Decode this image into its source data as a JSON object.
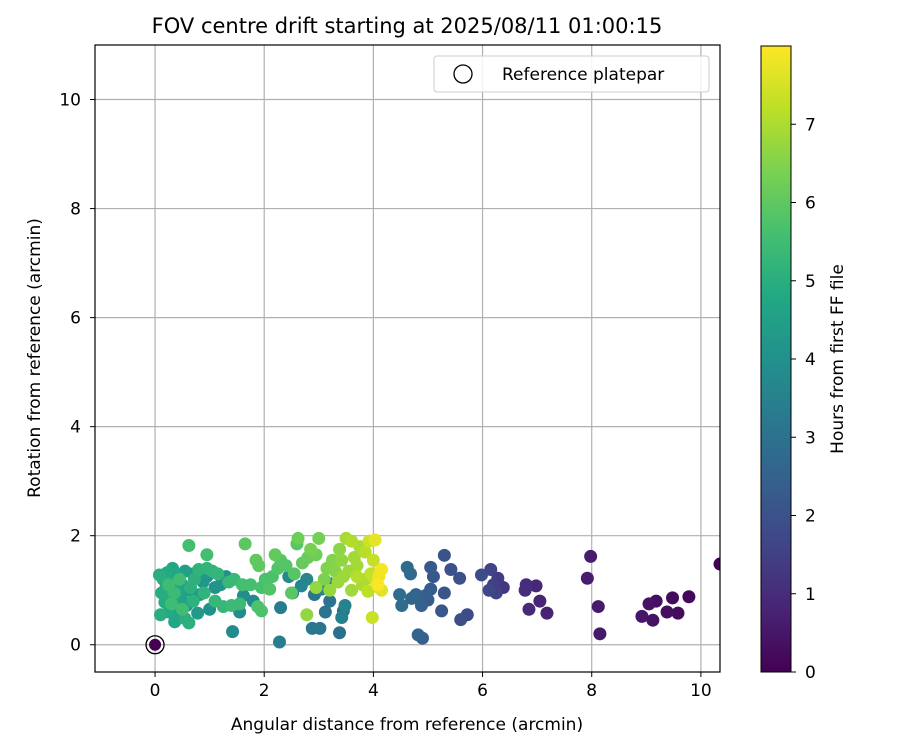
{
  "chart_data": {
    "type": "scatter",
    "title": "FOV centre drift starting at 2025/08/11 01:00:15",
    "xlabel": "Angular distance from reference (arcmin)",
    "ylabel": "Rotation from reference (arcmin)",
    "xlim": [
      -1.1,
      10.35
    ],
    "ylim": [
      -0.5,
      11.0
    ],
    "xticks": [
      0,
      2,
      4,
      6,
      8,
      10
    ],
    "yticks": [
      0,
      2,
      4,
      6,
      8,
      10
    ],
    "grid": true,
    "colormap": "viridis",
    "colorbar": {
      "label": "Hours from first FF file",
      "range": [
        0,
        8.0
      ],
      "ticks": [
        0,
        1,
        2,
        3,
        4,
        5,
        6,
        7
      ]
    },
    "legend": {
      "position": "top-right",
      "entries": [
        {
          "label": "Reference platepar",
          "marker": "open-circle"
        }
      ]
    },
    "reference_point": {
      "x": 0,
      "y": 0,
      "c": 0
    },
    "points": [
      [
        10.35,
        1.48,
        0.05
      ],
      [
        9.78,
        0.88,
        0.15
      ],
      [
        9.58,
        0.58,
        0.22
      ],
      [
        9.48,
        0.86,
        0.25
      ],
      [
        9.38,
        0.6,
        0.3
      ],
      [
        9.18,
        0.8,
        0.35
      ],
      [
        9.12,
        0.45,
        0.38
      ],
      [
        9.05,
        0.75,
        0.4
      ],
      [
        8.92,
        0.52,
        0.45
      ],
      [
        8.15,
        0.2,
        0.55
      ],
      [
        8.12,
        0.7,
        0.58
      ],
      [
        7.98,
        1.62,
        0.62
      ],
      [
        7.92,
        1.22,
        0.65
      ],
      [
        7.18,
        0.58,
        0.8
      ],
      [
        7.05,
        0.8,
        0.85
      ],
      [
        6.98,
        1.08,
        0.9
      ],
      [
        6.85,
        0.65,
        0.95
      ],
      [
        6.8,
        1.1,
        1.0
      ],
      [
        6.78,
        1.0,
        1.05
      ],
      [
        6.38,
        1.05,
        1.3
      ],
      [
        6.28,
        1.22,
        1.4
      ],
      [
        6.2,
        1.1,
        1.5
      ],
      [
        6.25,
        0.95,
        1.55
      ],
      [
        6.15,
        1.38,
        1.6
      ],
      [
        6.12,
        1.0,
        1.7
      ],
      [
        5.98,
        1.28,
        1.8
      ],
      [
        5.72,
        0.55,
        1.85
      ],
      [
        5.6,
        0.46,
        1.9
      ],
      [
        5.58,
        1.22,
        1.95
      ],
      [
        5.42,
        1.38,
        2.0
      ],
      [
        5.3,
        1.64,
        2.05
      ],
      [
        5.3,
        0.95,
        2.1
      ],
      [
        5.25,
        0.62,
        2.15
      ],
      [
        5.1,
        1.25,
        2.2
      ],
      [
        5.05,
        1.42,
        2.25
      ],
      [
        5.0,
        0.82,
        2.3
      ],
      [
        5.05,
        1.02,
        2.35
      ],
      [
        4.95,
        0.9,
        2.4
      ],
      [
        4.88,
        0.72,
        2.45
      ],
      [
        4.9,
        0.12,
        2.5
      ],
      [
        4.82,
        0.18,
        2.55
      ],
      [
        4.78,
        0.92,
        2.6
      ],
      [
        4.7,
        0.85,
        2.65
      ],
      [
        4.68,
        1.3,
        2.7
      ],
      [
        4.62,
        1.42,
        2.75
      ],
      [
        4.52,
        0.72,
        2.8
      ],
      [
        4.48,
        0.92,
        2.85
      ],
      [
        3.45,
        0.62,
        2.9
      ],
      [
        3.38,
        0.22,
        2.95
      ],
      [
        3.2,
        0.8,
        3.0
      ],
      [
        3.12,
        0.6,
        3.05
      ],
      [
        3.02,
        0.3,
        3.1
      ],
      [
        2.92,
        0.92,
        3.15
      ],
      [
        2.88,
        0.3,
        3.2
      ],
      [
        2.52,
        0.95,
        3.25
      ],
      [
        2.3,
        0.68,
        3.3
      ],
      [
        2.28,
        0.05,
        3.35
      ],
      [
        3.05,
        1.02,
        3.4
      ],
      [
        3.2,
        1.12,
        3.45
      ],
      [
        3.42,
        0.5,
        3.5
      ],
      [
        3.48,
        0.72,
        3.55
      ],
      [
        2.78,
        1.2,
        3.6
      ],
      [
        2.68,
        1.08,
        3.65
      ],
      [
        2.45,
        1.25,
        3.7
      ],
      [
        1.8,
        0.8,
        3.75
      ],
      [
        1.42,
        0.24,
        3.8
      ],
      [
        1.55,
        0.6,
        3.85
      ],
      [
        1.62,
        0.9,
        3.9
      ],
      [
        1.3,
        1.25,
        3.95
      ],
      [
        1.0,
        0.65,
        4.0
      ],
      [
        1.1,
        1.05,
        4.05
      ],
      [
        1.2,
        1.1,
        4.1
      ],
      [
        0.95,
        1.25,
        4.15
      ],
      [
        0.88,
        1.15,
        4.2
      ],
      [
        0.82,
        0.92,
        4.25
      ],
      [
        0.78,
        0.58,
        4.3
      ],
      [
        0.7,
        1.3,
        4.35
      ],
      [
        0.62,
        1.0,
        4.4
      ],
      [
        0.58,
        0.72,
        4.45
      ],
      [
        0.55,
        1.35,
        4.5
      ],
      [
        0.5,
        1.1,
        4.55
      ],
      [
        0.48,
        0.85,
        4.6
      ],
      [
        0.45,
        0.55,
        4.62
      ],
      [
        0.42,
        1.25,
        4.65
      ],
      [
        0.4,
        0.98,
        4.68
      ],
      [
        0.38,
        0.7,
        4.7
      ],
      [
        0.36,
        0.42,
        4.72
      ],
      [
        0.32,
        1.4,
        4.75
      ],
      [
        0.3,
        1.15,
        4.78
      ],
      [
        0.28,
        0.88,
        4.8
      ],
      [
        0.25,
        0.6,
        4.82
      ],
      [
        0.22,
        1.32,
        4.85
      ],
      [
        0.2,
        1.05,
        4.88
      ],
      [
        0.18,
        0.78,
        4.9
      ],
      [
        0.15,
        1.2,
        4.92
      ],
      [
        0.12,
        0.95,
        4.95
      ],
      [
        0.1,
        0.55,
        4.98
      ],
      [
        0.08,
        1.28,
        5.0
      ],
      [
        0.55,
        0.48,
        5.02
      ],
      [
        0.62,
        0.4,
        5.05
      ],
      [
        0.65,
        1.05,
        5.08
      ],
      [
        0.7,
        0.8,
        5.1
      ],
      [
        0.72,
        1.2,
        5.12
      ],
      [
        0.8,
        1.38,
        5.15
      ],
      [
        0.9,
        0.95,
        5.18
      ],
      [
        0.95,
        1.4,
        5.2
      ],
      [
        1.05,
        1.35,
        5.22
      ],
      [
        1.15,
        1.3,
        5.25
      ],
      [
        1.1,
        0.8,
        5.28
      ],
      [
        1.25,
        0.7,
        5.3
      ],
      [
        1.35,
        1.15,
        5.32
      ],
      [
        1.45,
        1.2,
        5.35
      ],
      [
        1.4,
        0.72,
        5.38
      ],
      [
        1.55,
        0.75,
        5.4
      ],
      [
        0.35,
        0.95,
        5.42
      ],
      [
        0.3,
        0.75,
        5.45
      ],
      [
        0.25,
        1.1,
        5.48
      ],
      [
        0.45,
        1.2,
        5.5
      ],
      [
        0.5,
        0.65,
        5.52
      ],
      [
        0.62,
        1.82,
        5.55
      ],
      [
        0.95,
        1.65,
        5.58
      ],
      [
        1.6,
        1.1,
        5.6
      ],
      [
        1.75,
        1.1,
        5.62
      ],
      [
        1.95,
        1.05,
        5.65
      ],
      [
        2.02,
        1.2,
        5.68
      ],
      [
        2.15,
        1.25,
        5.7
      ],
      [
        1.88,
        0.7,
        5.72
      ],
      [
        1.95,
        0.62,
        5.75
      ],
      [
        2.1,
        1.02,
        5.78
      ],
      [
        2.25,
        1.4,
        5.8
      ],
      [
        2.4,
        1.45,
        5.82
      ],
      [
        2.55,
        1.3,
        5.85
      ],
      [
        2.3,
        1.55,
        5.88
      ],
      [
        2.6,
        1.85,
        5.9
      ],
      [
        2.5,
        0.95,
        5.92
      ],
      [
        1.65,
        1.85,
        5.95
      ],
      [
        1.9,
        1.45,
        5.98
      ],
      [
        1.85,
        1.55,
        6.0
      ],
      [
        2.2,
        1.65,
        6.05
      ],
      [
        2.7,
        1.5,
        6.1
      ],
      [
        2.8,
        1.6,
        6.15
      ],
      [
        2.62,
        1.95,
        6.2
      ],
      [
        2.95,
        1.65,
        6.25
      ],
      [
        3.0,
        1.95,
        6.3
      ],
      [
        2.85,
        1.75,
        6.35
      ],
      [
        3.1,
        1.2,
        6.4
      ],
      [
        3.15,
        1.4,
        6.45
      ],
      [
        3.25,
        1.55,
        6.5
      ],
      [
        3.3,
        1.35,
        6.55
      ],
      [
        3.38,
        1.75,
        6.6
      ],
      [
        3.42,
        1.55,
        6.65
      ],
      [
        2.78,
        0.55,
        6.7
      ],
      [
        2.95,
        1.05,
        6.72
      ],
      [
        3.2,
        1.0,
        6.75
      ],
      [
        3.35,
        1.15,
        6.78
      ],
      [
        3.45,
        1.25,
        6.8
      ],
      [
        3.55,
        1.35,
        6.82
      ],
      [
        3.6,
        1.0,
        6.85
      ],
      [
        3.65,
        1.6,
        6.88
      ],
      [
        3.7,
        1.45,
        6.9
      ],
      [
        3.5,
        1.95,
        6.92
      ],
      [
        3.75,
        1.8,
        6.95
      ],
      [
        3.8,
        1.1,
        6.98
      ],
      [
        3.85,
        1.2,
        7.0
      ],
      [
        3.6,
        1.9,
        7.05
      ],
      [
        3.7,
        1.25,
        7.1
      ],
      [
        3.85,
        1.7,
        7.15
      ],
      [
        3.9,
        0.98,
        7.2
      ],
      [
        3.95,
        1.3,
        7.25
      ],
      [
        4.0,
        1.55,
        7.3
      ],
      [
        3.98,
        0.5,
        7.35
      ],
      [
        3.92,
        1.9,
        7.4
      ],
      [
        4.05,
        1.15,
        7.45
      ],
      [
        4.1,
        1.05,
        7.5
      ],
      [
        4.12,
        1.35,
        7.55
      ],
      [
        4.15,
        1.0,
        7.65
      ],
      [
        4.03,
        1.92,
        7.7
      ],
      [
        4.1,
        1.25,
        7.8
      ],
      [
        4.15,
        1.38,
        7.9
      ],
      [
        4.08,
        1.1,
        7.95
      ]
    ]
  }
}
